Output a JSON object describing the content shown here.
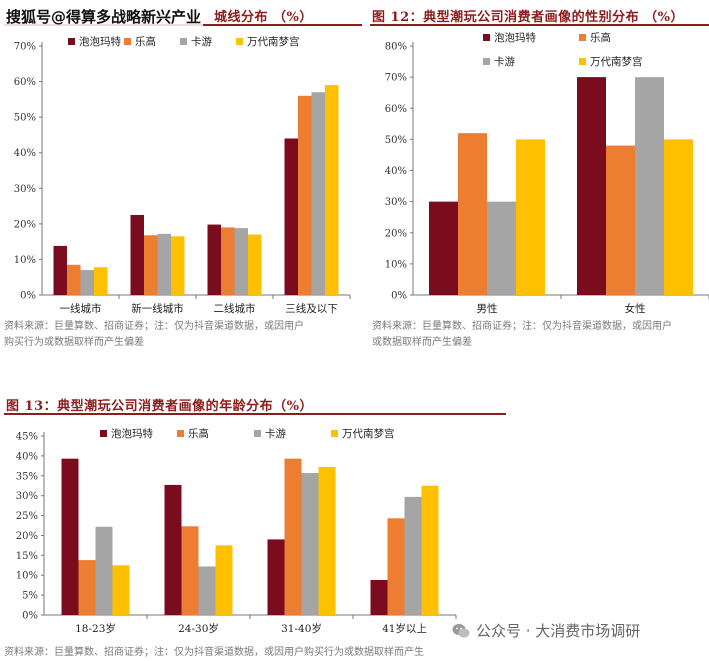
{
  "watermark_top": "搜狐号@得算多战略新兴产业",
  "watermark_bottom": "公众号 · 大消费市场调研",
  "panels": [
    {
      "title": "城线分布 （%）",
      "source_line1": "资料来源：巨量算数、招商证券；注：仅为抖音渠道数据，或因用户",
      "source_line2": "购买行为或数据取样而产生偏差"
    },
    {
      "title": "图 12：典型潮玩公司消费者画像的性别分布 （%）",
      "source_line1": "资料来源：巨量算数、招商证券；注：仅为抖音渠道数据，或因用户",
      "source_line2": "或数据取样而产生偏差"
    },
    {
      "title": "图 13：典型潮玩公司消费者画像的年龄分布（%）",
      "source_line1": "资料来源：巨量算数、招商证券；注：仅为抖音渠道数据，或因用户购买行为或数据取样而产生",
      "source_line2": ""
    }
  ],
  "colors": [
    "#7b0c1e",
    "#ed7d31",
    "#a5a5a5",
    "#ffc000"
  ],
  "chart_data": [
    {
      "type": "bar",
      "categories": [
        "一线城市",
        "新一线城市",
        "二线城市",
        "三线及以下"
      ],
      "series": [
        {
          "name": "泡泡玛特",
          "values": [
            13.8,
            22.5,
            19.8,
            44
          ]
        },
        {
          "name": "乐高",
          "values": [
            8.5,
            16.8,
            19,
            56
          ]
        },
        {
          "name": "卡游",
          "values": [
            7,
            17.2,
            18.8,
            57
          ]
        },
        {
          "name": "万代南梦宫",
          "values": [
            7.8,
            16.5,
            17,
            59
          ]
        }
      ],
      "ylim": [
        0,
        70
      ],
      "yticks": [
        "0%",
        "10%",
        "20%",
        "30%",
        "40%",
        "50%",
        "60%",
        "70%"
      ],
      "legend": "top"
    },
    {
      "type": "bar",
      "categories": [
        "男性",
        "女性"
      ],
      "series": [
        {
          "name": "泡泡玛特",
          "values": [
            30,
            70
          ]
        },
        {
          "name": "乐高",
          "values": [
            52,
            48
          ]
        },
        {
          "name": "卡游",
          "values": [
            30,
            70
          ]
        },
        {
          "name": "万代南梦宫",
          "values": [
            50,
            50
          ]
        }
      ],
      "ylim": [
        0,
        80
      ],
      "yticks": [
        "0%",
        "10%",
        "20%",
        "30%",
        "40%",
        "50%",
        "60%",
        "70%",
        "80%"
      ],
      "legend": "top"
    },
    {
      "type": "bar",
      "categories": [
        "18-23岁",
        "24-30岁",
        "31-40岁",
        "41岁以上"
      ],
      "series": [
        {
          "name": "泡泡玛特",
          "values": [
            39.3,
            32.7,
            19,
            8.8
          ]
        },
        {
          "name": "乐高",
          "values": [
            13.8,
            22.3,
            39.3,
            24.3
          ]
        },
        {
          "name": "卡游",
          "values": [
            22.2,
            12.2,
            35.7,
            29.7
          ]
        },
        {
          "name": "万代南梦宫",
          "values": [
            12.5,
            17.5,
            37.2,
            32.5
          ]
        }
      ],
      "ylim": [
        0,
        45
      ],
      "yticks": [
        "0%",
        "5%",
        "10%",
        "15%",
        "20%",
        "25%",
        "30%",
        "35%",
        "40%",
        "45%"
      ],
      "legend": "top"
    }
  ]
}
